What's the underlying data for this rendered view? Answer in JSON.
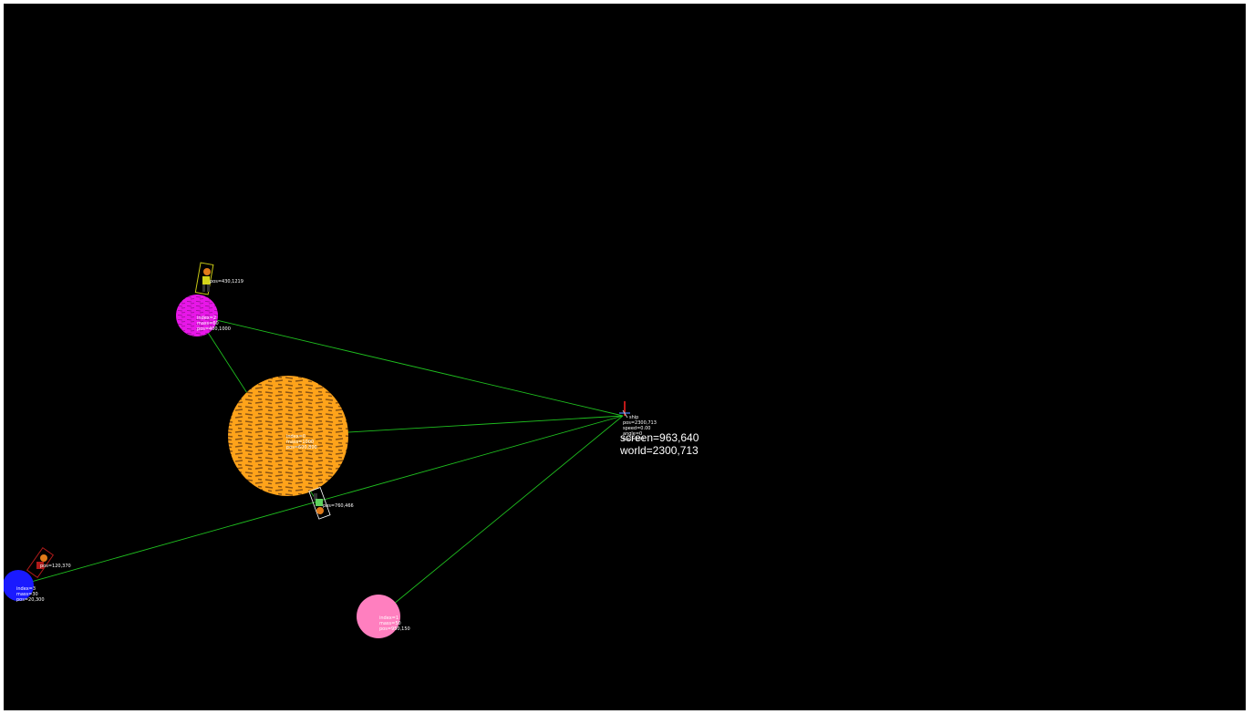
{
  "cursor": {
    "screen_label": "screen=963,640",
    "world_label": "world=2300,713"
  },
  "ship": {
    "info": [
      "ship",
      "pos=2300,713",
      "speed=0.00",
      "angle=0",
      "fuel=100"
    ]
  },
  "planets": [
    {
      "id": "magenta-planet",
      "color": "#e817e8",
      "info": [
        "index=2",
        "mass=60",
        "pos=400,1000"
      ]
    },
    {
      "id": "orange-sun",
      "color": "#ffa31a",
      "info": [
        "index=0",
        "mass=1000",
        "pos=600,800"
      ]
    },
    {
      "id": "blue-planet",
      "color": "#1a1aff",
      "info": [
        "index=3",
        "mass=30",
        "pos=20,300"
      ]
    },
    {
      "id": "pink-planet",
      "color": "#ff7fbf",
      "info": [
        "index=1",
        "mass=50",
        "pos=950,150"
      ]
    }
  ],
  "characters": [
    {
      "id": "character-magenta",
      "color": "#c9c914",
      "label": "pos=430,1219"
    },
    {
      "id": "character-sun",
      "color": "#ffffff",
      "label": "pos=760,466"
    },
    {
      "id": "character-blue",
      "color": "#b01a1a",
      "label": "pos=120,370"
    }
  ],
  "line_color": "#1fbf1f"
}
